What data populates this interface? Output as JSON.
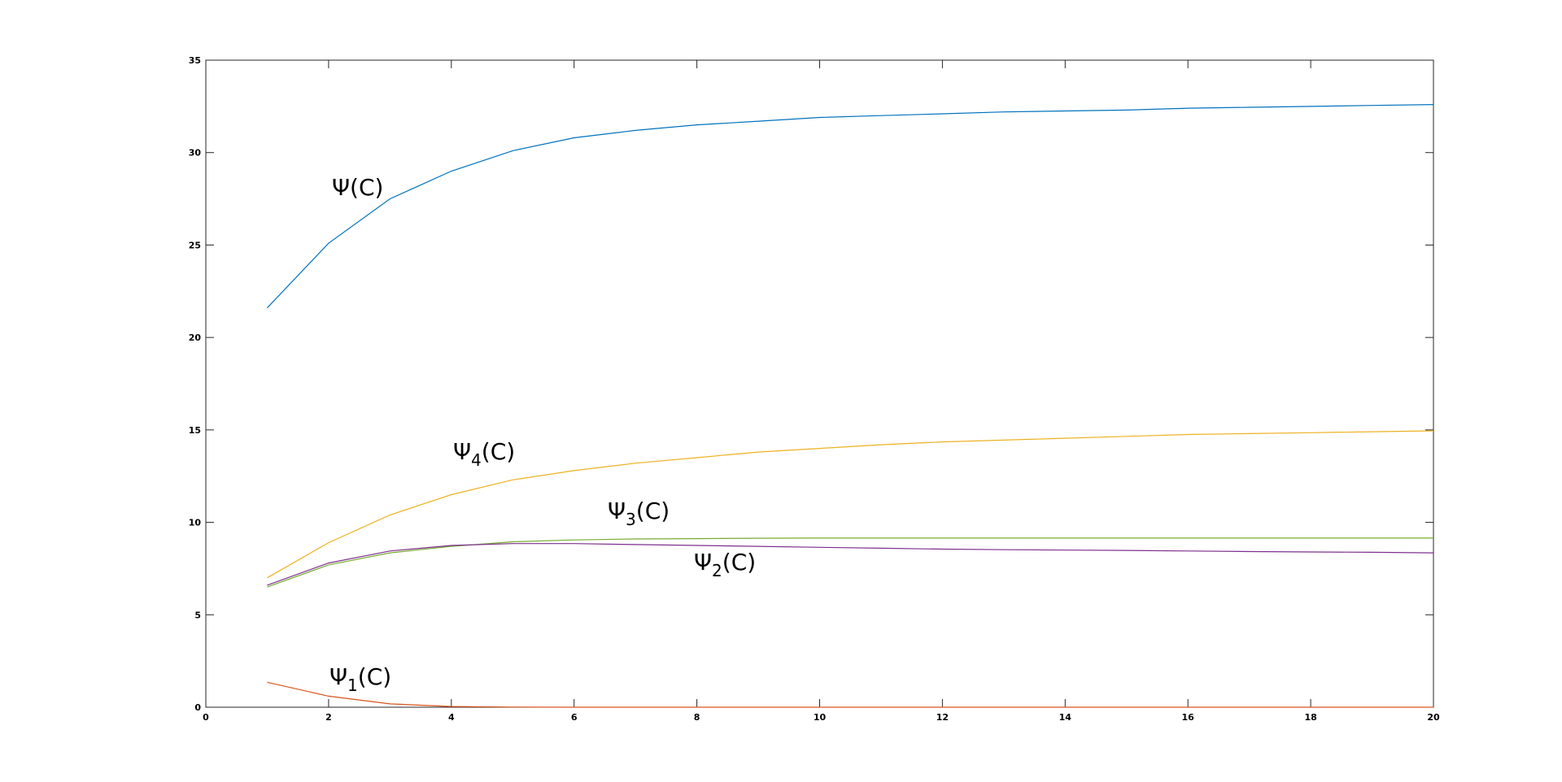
{
  "chart_data": {
    "type": "line",
    "title": "",
    "xlabel": "",
    "ylabel": "",
    "xlim": [
      0,
      20
    ],
    "ylim": [
      0,
      35
    ],
    "grid": false,
    "x_ticks": [
      "0",
      "2",
      "4",
      "6",
      "8",
      "10",
      "12",
      "14",
      "16",
      "18",
      "20"
    ],
    "y_ticks": [
      "0",
      "5",
      "10",
      "15",
      "20",
      "25",
      "30",
      "35"
    ],
    "x": [
      1,
      2,
      3,
      4,
      5,
      6,
      7,
      8,
      9,
      10,
      11,
      12,
      13,
      14,
      15,
      16,
      17,
      18,
      19,
      20
    ],
    "series": [
      {
        "key": "psi",
        "label_main": "Ψ",
        "label_sub": "",
        "label_rest": "(C)",
        "color": "#0072BD",
        "values": [
          21.6,
          25.1,
          27.5,
          29.0,
          30.1,
          30.8,
          31.2,
          31.5,
          31.7,
          31.9,
          32.0,
          32.1,
          32.2,
          32.25,
          32.3,
          32.4,
          32.45,
          32.5,
          32.55,
          32.6
        ]
      },
      {
        "key": "psi4",
        "label_main": "Ψ",
        "label_sub": "4",
        "label_rest": "(C)",
        "color": "#EDB120",
        "values": [
          7.0,
          8.9,
          10.4,
          11.5,
          12.3,
          12.8,
          13.2,
          13.5,
          13.8,
          14.0,
          14.2,
          14.35,
          14.45,
          14.55,
          14.65,
          14.75,
          14.8,
          14.85,
          14.9,
          14.95
        ]
      },
      {
        "key": "psi3",
        "label_main": "Ψ",
        "label_sub": "3",
        "label_rest": "(C)",
        "color": "#77AC30",
        "values": [
          6.5,
          7.7,
          8.35,
          8.7,
          8.95,
          9.05,
          9.1,
          9.12,
          9.14,
          9.15,
          9.15,
          9.15,
          9.15,
          9.15,
          9.15,
          9.15,
          9.15,
          9.15,
          9.15,
          9.15
        ]
      },
      {
        "key": "psi2",
        "label_main": "Ψ",
        "label_sub": "2",
        "label_rest": "(C)",
        "color": "#7E2F8E",
        "values": [
          6.6,
          7.8,
          8.45,
          8.75,
          8.85,
          8.85,
          8.8,
          8.75,
          8.7,
          8.65,
          8.6,
          8.55,
          8.52,
          8.5,
          8.48,
          8.45,
          8.42,
          8.4,
          8.38,
          8.35
        ]
      },
      {
        "key": "psi1",
        "label_main": "Ψ",
        "label_sub": "1",
        "label_rest": "(C)",
        "color": "#D95319",
        "values": [
          1.35,
          0.6,
          0.18,
          0.04,
          0.01,
          0,
          0,
          0,
          0,
          0,
          0,
          0,
          0,
          0,
          0,
          0,
          0,
          0,
          0,
          0
        ]
      }
    ]
  }
}
